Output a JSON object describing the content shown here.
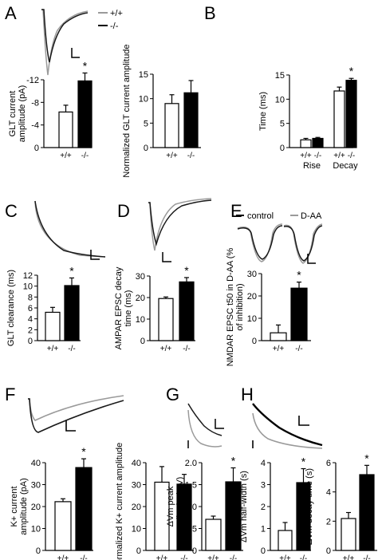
{
  "panels": {
    "A": "A",
    "B": "B",
    "C": "C",
    "D": "D",
    "E": "E",
    "F": "F",
    "G": "G",
    "H": "H"
  },
  "legend_A": {
    "wt": "+/+",
    "ko": "-/-"
  },
  "legend_E": {
    "control": "control",
    "daa": "D-AA"
  },
  "colors": {
    "wt_trace": "#9a9a9a",
    "ko_trace": "#1a1a1a",
    "ko_bar": "#000000",
    "wt_bar": "#ffffff"
  },
  "chart_data": [
    {
      "id": "A-left",
      "type": "bar",
      "categories": [
        "+/+",
        "-/-"
      ],
      "values": [
        6.3,
        11.8
      ],
      "errors": [
        1.2,
        1.4
      ],
      "ylabel": "GLT current amplitude (pA)",
      "yticks": [
        "0",
        "-4",
        "-8",
        "-12"
      ],
      "ylim": [
        0,
        12
      ],
      "significance": "*"
    },
    {
      "id": "A-right",
      "type": "bar",
      "categories": [
        "+/+",
        "-/-"
      ],
      "values": [
        9.0,
        11.2
      ],
      "errors": [
        1.8,
        2.5
      ],
      "ylabel": "Normalized GLT current amplitude",
      "yticks": [
        "0",
        "5",
        "10",
        "15"
      ],
      "ylim": [
        0,
        15
      ]
    },
    {
      "id": "B",
      "type": "bar",
      "categories": [
        "+/+",
        "-/-",
        "+/+",
        "-/-"
      ],
      "groups": [
        "Rise",
        "Decay"
      ],
      "values": [
        1.6,
        1.9,
        11.7,
        13.9
      ],
      "errors": [
        0.3,
        0.2,
        0.8,
        0.4
      ],
      "ylabel": "Time (ms)",
      "yticks": [
        "0",
        "5",
        "10",
        "15"
      ],
      "ylim": [
        0,
        15
      ],
      "significance": "*"
    },
    {
      "id": "C",
      "type": "bar",
      "categories": [
        "+/+",
        "-/-"
      ],
      "values": [
        5.2,
        10.1
      ],
      "errors": [
        0.9,
        1.4
      ],
      "ylabel": "GLT clearance (ms)",
      "yticks": [
        "0",
        "2",
        "4",
        "6",
        "8",
        "10",
        "12"
      ],
      "ylim": [
        0,
        12
      ],
      "significance": "*"
    },
    {
      "id": "D",
      "type": "bar",
      "categories": [
        "+/+",
        "-/-"
      ],
      "values": [
        21.5,
        30.0
      ],
      "errors": [
        0.8,
        2.2
      ],
      "ylabel": "AMPAR EPSC decay time (ms)",
      "yticks": [
        "0",
        "10",
        "20",
        "30"
      ],
      "ylim": [
        0,
        33
      ],
      "significance": "*"
    },
    {
      "id": "E",
      "type": "bar",
      "categories": [
        "+/+",
        "-/-"
      ],
      "values": [
        3.5,
        23.5
      ],
      "errors": [
        3.5,
        2.7
      ],
      "ylabel": "NMDAR EPSC t50 in D-AA (% of inhibition)",
      "yticks": [
        "0",
        "10",
        "20",
        "30"
      ],
      "ylim": [
        0,
        30
      ],
      "significance": "*"
    },
    {
      "id": "F-left",
      "type": "bar",
      "categories": [
        "+/+",
        "-/-"
      ],
      "values": [
        25.0,
        42.5
      ],
      "errors": [
        1.5,
        4.5
      ],
      "ylabel": "K+ current amplitude (pA)",
      "yticks": [
        "0",
        "10",
        "20",
        "30",
        "40"
      ],
      "ylim": [
        0,
        45
      ],
      "significance": "*"
    },
    {
      "id": "F-right",
      "type": "bar",
      "categories": [
        "+/+",
        "-/-"
      ],
      "values": [
        35.0,
        34.0
      ],
      "errors": [
        8.0,
        5.0
      ],
      "ylabel": "Normalized K+ current amplitude",
      "yticks": [
        "0",
        "10",
        "20",
        "30",
        "40"
      ],
      "ylim": [
        0,
        45
      ]
    },
    {
      "id": "G",
      "type": "bar",
      "categories": [
        "+/+",
        "-/-"
      ],
      "values": [
        0.78,
        1.72
      ],
      "errors": [
        0.08,
        0.35
      ],
      "ylabel": "ΔVm peak amplitude (mV)",
      "yticks": [
        "0",
        "0.5",
        "1.0",
        "1.5",
        "2.0"
      ],
      "ylim": [
        0,
        2.2
      ],
      "significance": "*"
    },
    {
      "id": "H-left",
      "type": "bar",
      "categories": [
        "+/+",
        "-/-"
      ],
      "values": [
        1.0,
        3.4
      ],
      "errors": [
        0.4,
        0.7
      ],
      "ylabel": "ΔVm half-width (s)",
      "yticks": [
        "0",
        "1",
        "2",
        "3",
        "4"
      ],
      "ylim": [
        0,
        4.4
      ],
      "significance": "*"
    },
    {
      "id": "H-right",
      "type": "bar",
      "categories": [
        "+/+",
        "-/-"
      ],
      "values": [
        2.4,
        5.7
      ],
      "errors": [
        0.45,
        0.7
      ],
      "ylabel": "ΔVm decay time (s)",
      "yticks": [
        "0",
        "2",
        "4",
        "6"
      ],
      "ylim": [
        0,
        6.6
      ],
      "significance": "*"
    }
  ]
}
